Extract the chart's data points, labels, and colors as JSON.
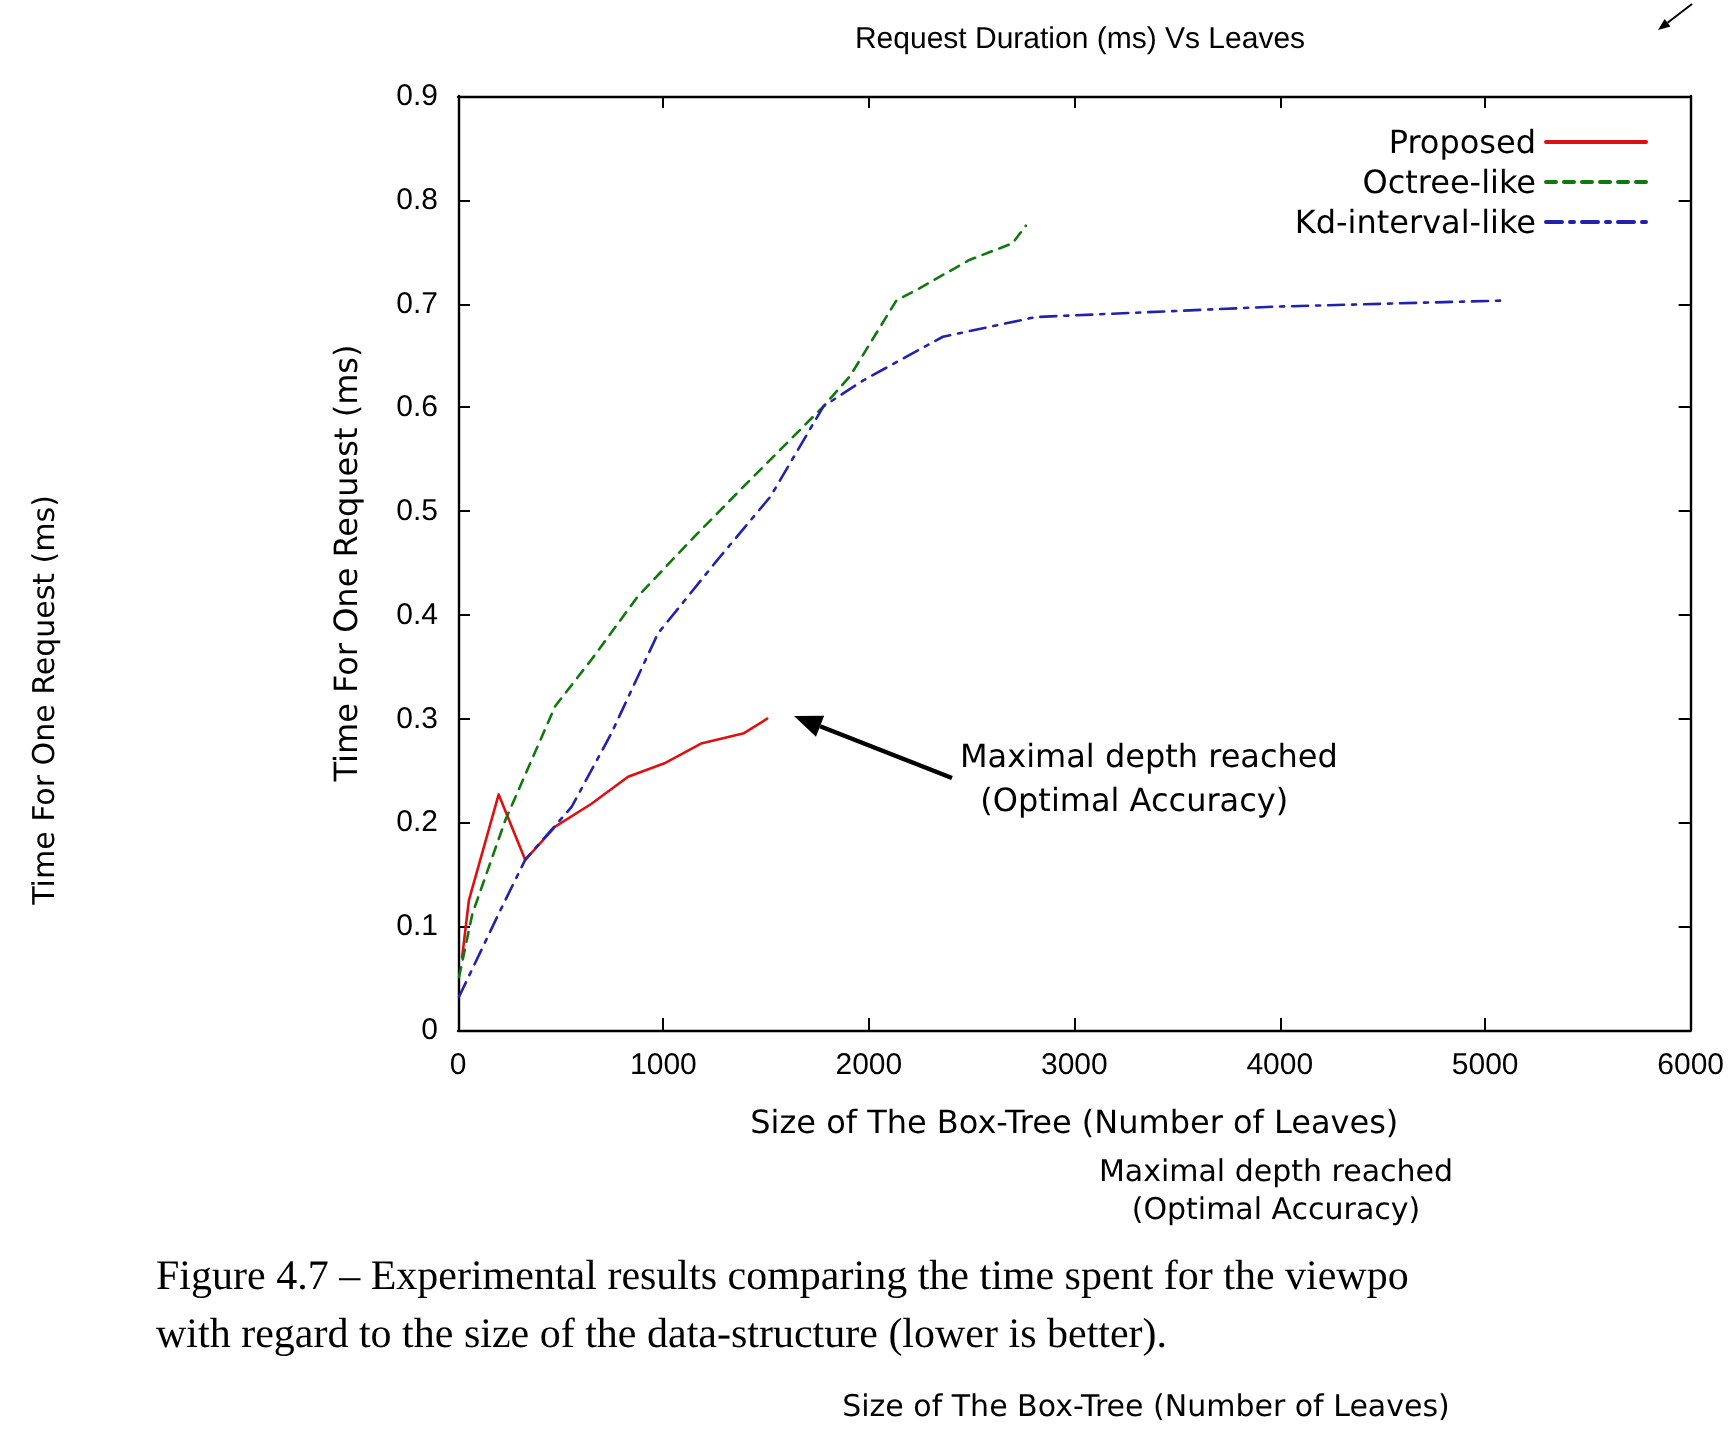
{
  "chart_data": {
    "type": "line",
    "title": "Request Duration (ms) Vs Leaves",
    "xlabel": "Size of The Box-Tree (Number of Leaves)",
    "ylabel": "Time For One Request (ms)",
    "xlim": [
      0,
      6000
    ],
    "xticks": [
      0,
      1000,
      2000,
      3000,
      4000,
      5000,
      6000
    ],
    "ylim": [
      0,
      0.9
    ],
    "yticks": [
      0,
      0.1,
      0.2,
      0.3,
      0.4,
      0.5,
      0.6,
      0.7,
      0.8,
      0.9
    ],
    "grid": false,
    "legend": "top right",
    "marker": "none",
    "series": [
      {
        "name": "Proposed",
        "color": "#dd1111",
        "line_style": "solid",
        "x": [
          20,
          53,
          198,
          327,
          473,
          650,
          828,
          1005,
          1183,
          1392,
          1505
        ],
        "values": [
          0.07,
          0.125,
          0.227,
          0.164,
          0.196,
          0.218,
          0.244,
          0.257,
          0.276,
          0.286,
          0.3
        ]
      },
      {
        "name": "Octree-like",
        "color": "#117711",
        "line_style": "dashed",
        "x": [
          5,
          70,
          230,
          473,
          650,
          876,
          1134,
          1392,
          1779,
          1908,
          2134,
          2231,
          2489,
          2699,
          2764
        ],
        "values": [
          0.051,
          0.112,
          0.202,
          0.312,
          0.357,
          0.418,
          0.472,
          0.524,
          0.601,
          0.63,
          0.703,
          0.713,
          0.742,
          0.758,
          0.775
        ]
      },
      {
        "name": "Kd-interval-like",
        "color": "#2222aa",
        "line_style": "dashdot",
        "x": [
          5,
          198,
          327,
          553,
          747,
          973,
          1263,
          1521,
          1779,
          1973,
          2360,
          2812,
          3974,
          5104
        ],
        "values": [
          0.032,
          0.112,
          0.164,
          0.215,
          0.286,
          0.382,
          0.453,
          0.514,
          0.601,
          0.626,
          0.668,
          0.687,
          0.697,
          0.703
        ]
      }
    ],
    "annotations": [
      "Maximal depth reached\n  (Optimal Accuracy)",
      "Time For One Request (ms)",
      "Maximal depth reached\n(Optimal Accuracy)",
      "Figure 4.7 – Experimental results comparing the time spent for the viewpo\nwith regard to the size of the data-structure (lower is better).",
      "Size of The Box-Tree (Number of Leaves)"
    ]
  }
}
